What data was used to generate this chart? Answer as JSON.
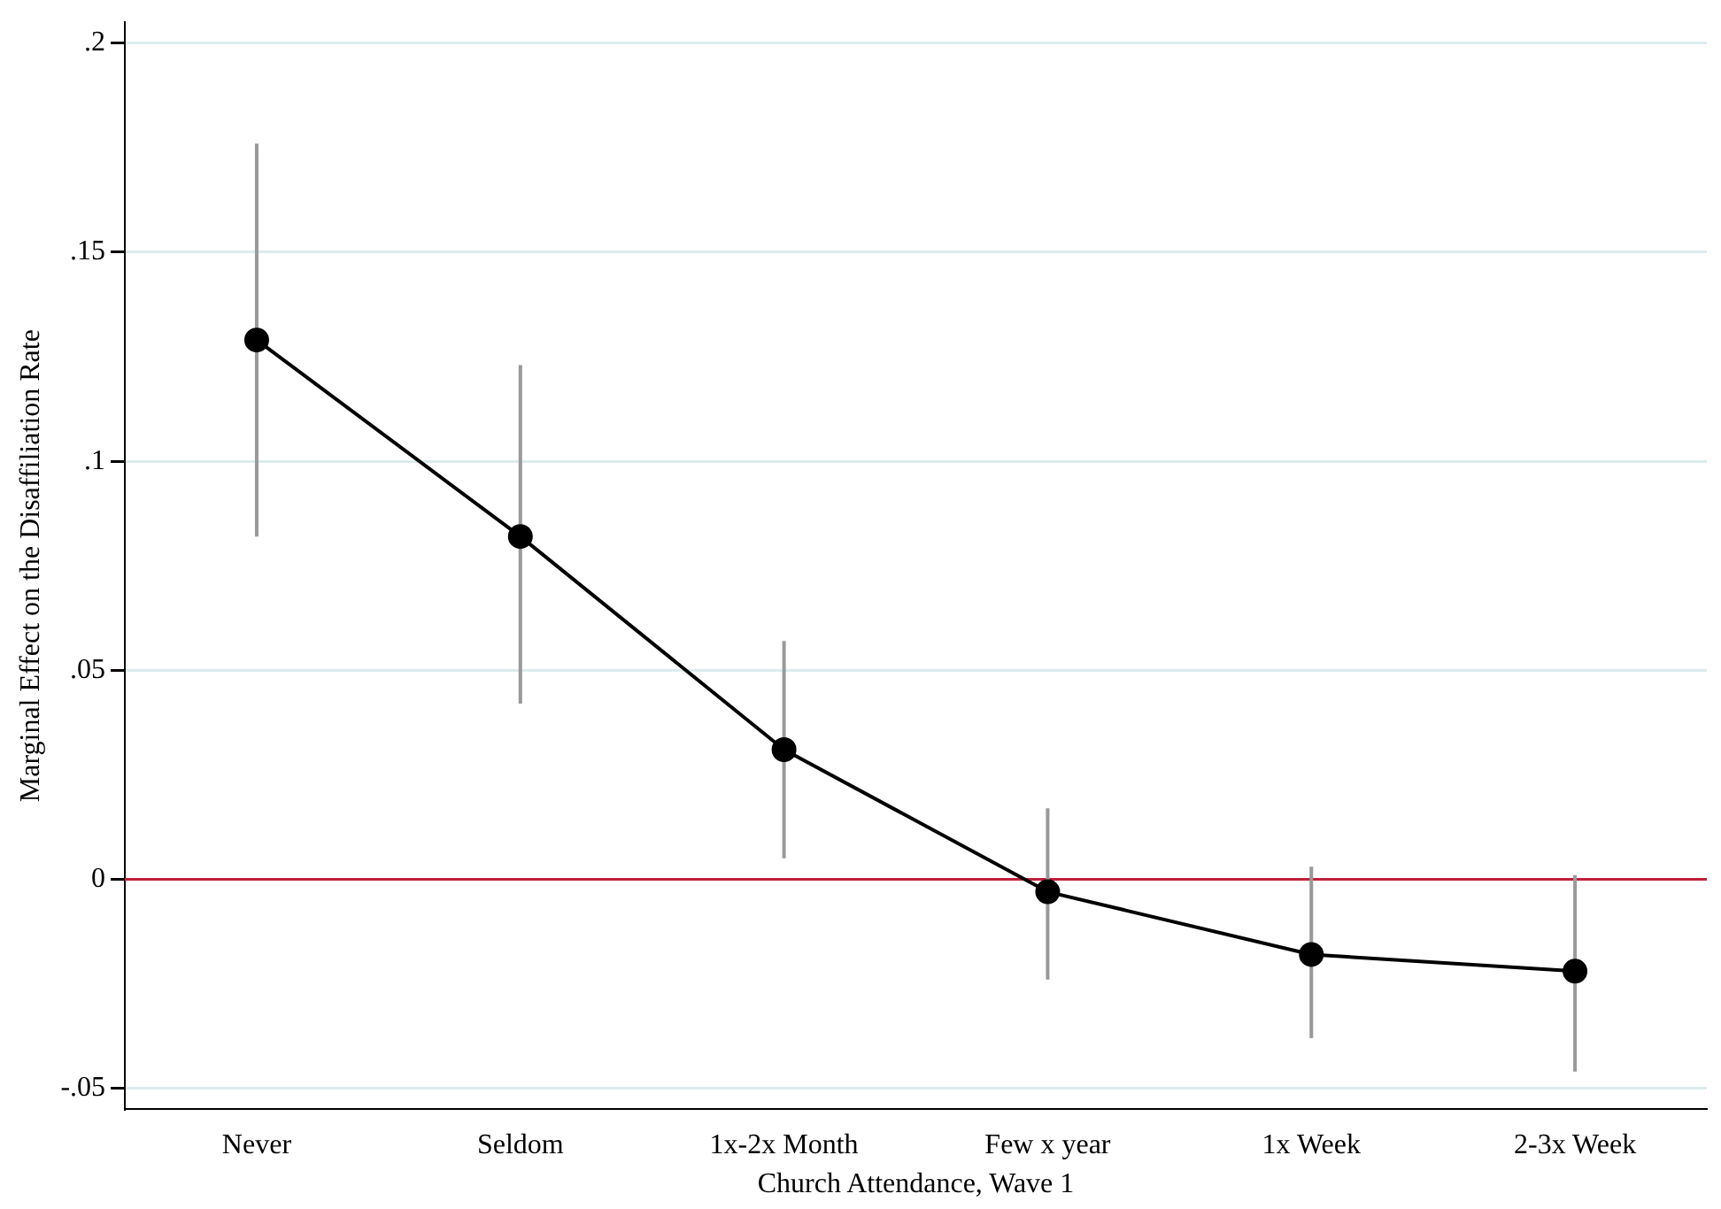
{
  "chart_data": {
    "type": "line",
    "xlabel": "Church Attendance, Wave 1",
    "ylabel": "Marginal Effect on the Disaffiliation Rate",
    "categories": [
      "Never",
      "Seldom",
      "1x-2x Month",
      "Few x year",
      "1x Week",
      "2-3x Week"
    ],
    "series": [
      {
        "color": "#000000",
        "values": [
          0.129,
          0.082,
          0.031,
          -0.003,
          -0.018,
          -0.022
        ],
        "errors": [
          [
            0.082,
            0.176
          ],
          [
            0.042,
            0.123
          ],
          [
            0.005,
            0.057
          ],
          [
            -0.024,
            0.017
          ],
          [
            -0.038,
            0.003
          ],
          [
            -0.046,
            0.001
          ]
        ]
      }
    ],
    "ylim": [
      -0.055,
      0.205
    ],
    "yticks": [
      {
        "value": -0.05,
        "label": "-.05"
      },
      0,
      {
        "value": 0.05,
        "label": ".05"
      },
      {
        "value": 0.1,
        "label": ".1"
      },
      {
        "value": 0.15,
        "label": ".15"
      },
      {
        "value": 0.2,
        "label": ".2"
      }
    ],
    "grid": "y",
    "legend": false,
    "marker": "circle",
    "line_style": "solid",
    "ref_lines": [
      {
        "axis": "y",
        "value": 0,
        "color": "#c0203a"
      }
    ]
  }
}
